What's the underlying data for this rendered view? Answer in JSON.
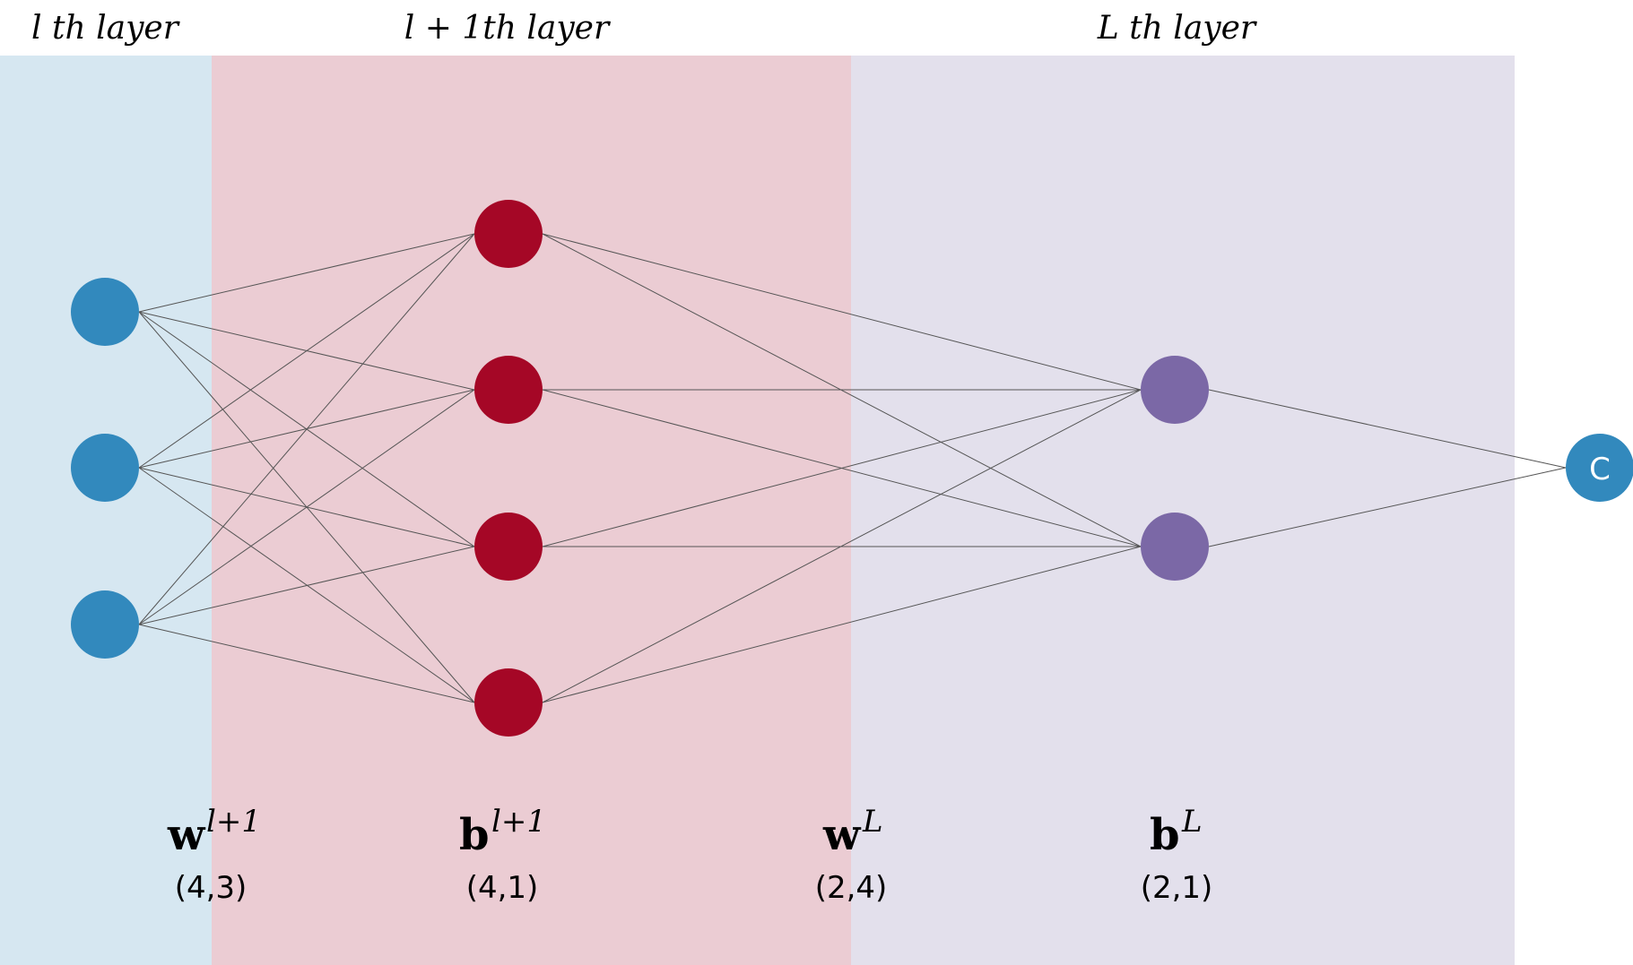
{
  "layer_titles": {
    "l": "l th layer",
    "l_plus_1": "l + 1th layer",
    "L": "L th layer"
  },
  "params": {
    "w_l1": {
      "symbol": "w",
      "superscript": "l+1",
      "shape": "(4,3)"
    },
    "b_l1": {
      "symbol": "b",
      "superscript": "l+1",
      "shape": "(4,1)"
    },
    "w_L": {
      "symbol": "w",
      "superscript": "L",
      "shape": "(2,4)"
    },
    "b_L": {
      "symbol": "b",
      "superscript": "L",
      "shape": "(2,1)"
    }
  },
  "output_node": {
    "label": "C"
  },
  "network": {
    "layer_sizes": [
      3,
      4,
      2,
      1
    ]
  },
  "colors": {
    "band_l": "#d6e7f1",
    "band_l_plus_1": "#ebccd3",
    "band_L": "#e3e0ec",
    "node_l": "#3289bd",
    "node_l_plus_1": "#a50726",
    "node_L": "#7b68a6",
    "node_output": "#3289bd",
    "edge": "#555555"
  }
}
